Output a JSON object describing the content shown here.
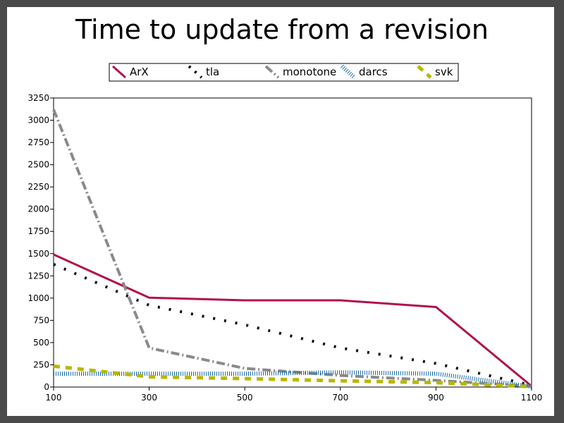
{
  "chart_data": {
    "type": "line",
    "title": "Time to update from a revision",
    "xlabel": "",
    "ylabel": "",
    "x": [
      100,
      300,
      500,
      700,
      900,
      1100
    ],
    "x_ticks": [
      "100",
      "300",
      "500",
      "700",
      "900",
      "1100"
    ],
    "y_ticks": [
      "0",
      "250",
      "500",
      "750",
      "1000",
      "1250",
      "1500",
      "1750",
      "2000",
      "2250",
      "2500",
      "2750",
      "3000",
      "3250"
    ],
    "xlim": [
      100,
      1100
    ],
    "ylim": [
      0,
      3250
    ],
    "grid": false,
    "legend_position": "top",
    "series": [
      {
        "name": "ArX",
        "color": "#b0124f",
        "style": "solid",
        "values": [
          1490,
          1005,
          975,
          975,
          900,
          10
        ]
      },
      {
        "name": "tla",
        "color": "#111111",
        "style": "dotted",
        "values": [
          1380,
          920,
          700,
          440,
          265,
          20
        ]
      },
      {
        "name": "monotone",
        "color": "#8a8a8a",
        "style": "dashdot",
        "values": [
          3120,
          440,
          210,
          130,
          75,
          10
        ]
      },
      {
        "name": "darcs",
        "color": "#1a6aa8",
        "style": "dense",
        "values": [
          150,
          150,
          150,
          165,
          150,
          5
        ]
      },
      {
        "name": "svk",
        "color": "#b8b800",
        "style": "dashed",
        "values": [
          235,
          115,
          95,
          70,
          50,
          5
        ]
      }
    ]
  }
}
